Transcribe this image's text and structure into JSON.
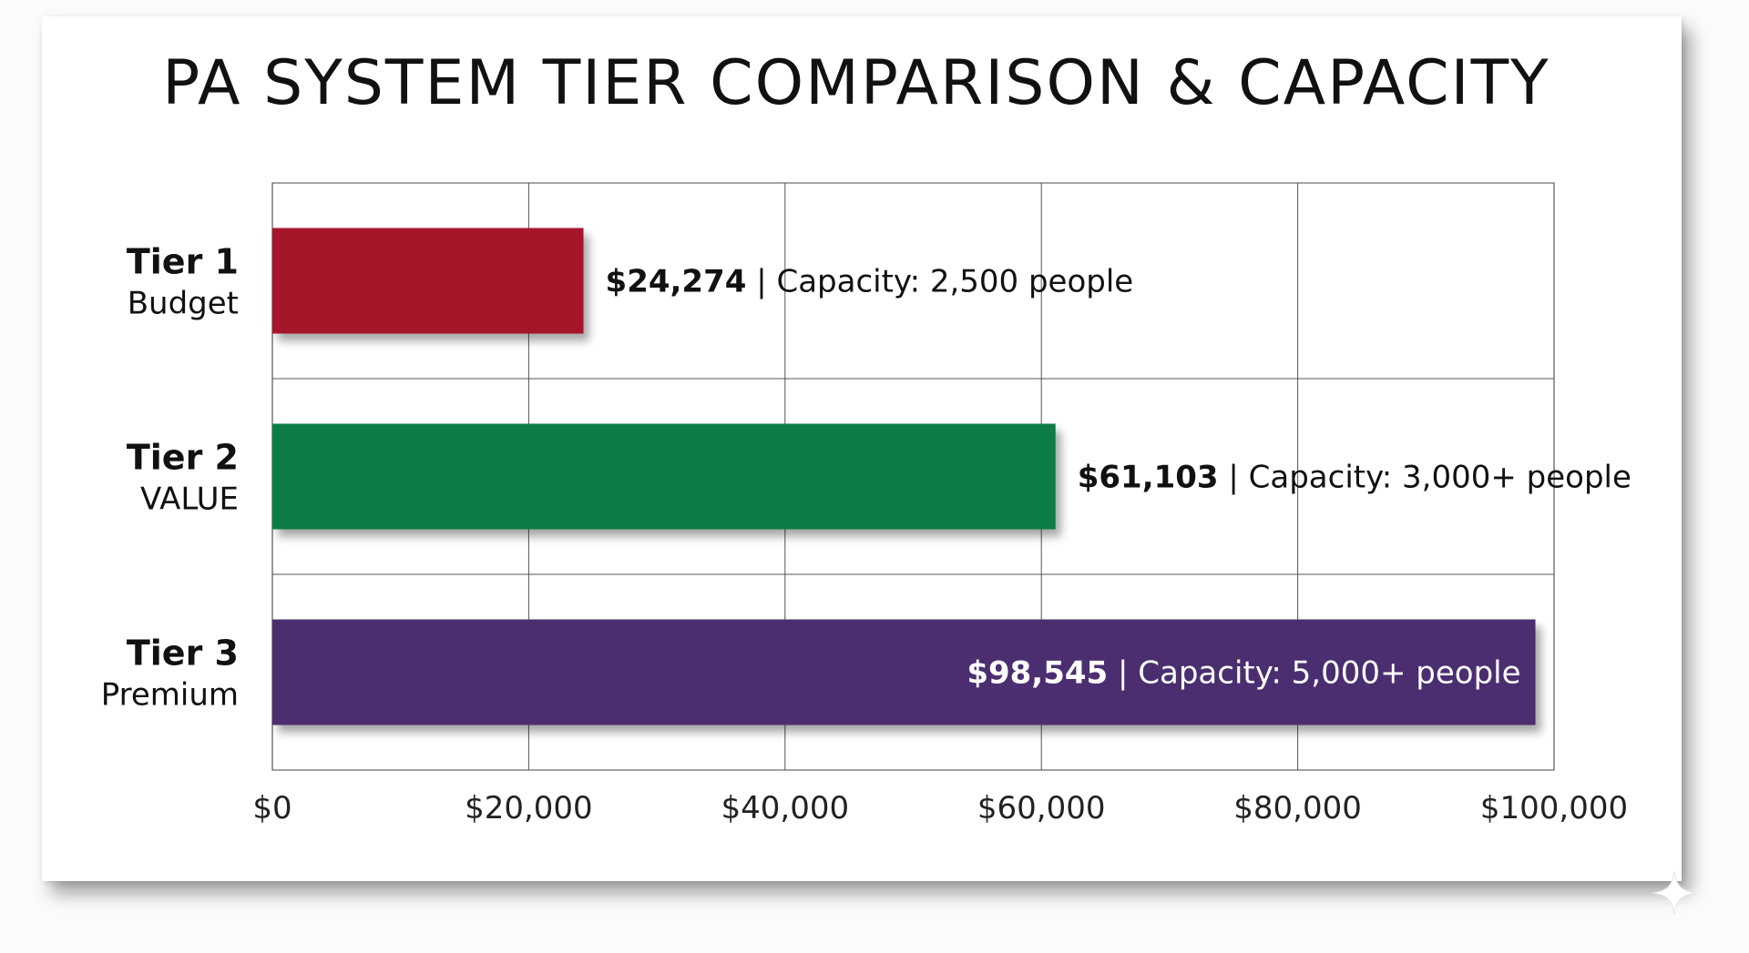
{
  "chart_data": {
    "type": "bar",
    "orientation": "horizontal",
    "title": "PA SYSTEM TIER COMPARISON & CAPACITY",
    "categories": [
      {
        "tier": "Tier 1",
        "name": "Budget"
      },
      {
        "tier": "Tier 2",
        "name": "VALUE"
      },
      {
        "tier": "Tier 3",
        "name": "Premium"
      }
    ],
    "values": [
      24274,
      61103,
      98545
    ],
    "value_labels": [
      "$24,274",
      "$61,103",
      "$98,545"
    ],
    "capacity_labels": [
      "| Capacity: 2,500 people",
      "| Capacity: 3,000+ people",
      "| Capacity: 5,000+ people"
    ],
    "colors": [
      "#a51729",
      "#0f7b45",
      "#4b2f70"
    ],
    "xlim": [
      0,
      100000
    ],
    "xticks": [
      0,
      20000,
      40000,
      60000,
      80000,
      100000
    ],
    "xtick_labels": [
      "$0",
      "$20,000",
      "$40,000",
      "$60,000",
      "$80,000",
      "$100,000"
    ],
    "grid": true
  }
}
